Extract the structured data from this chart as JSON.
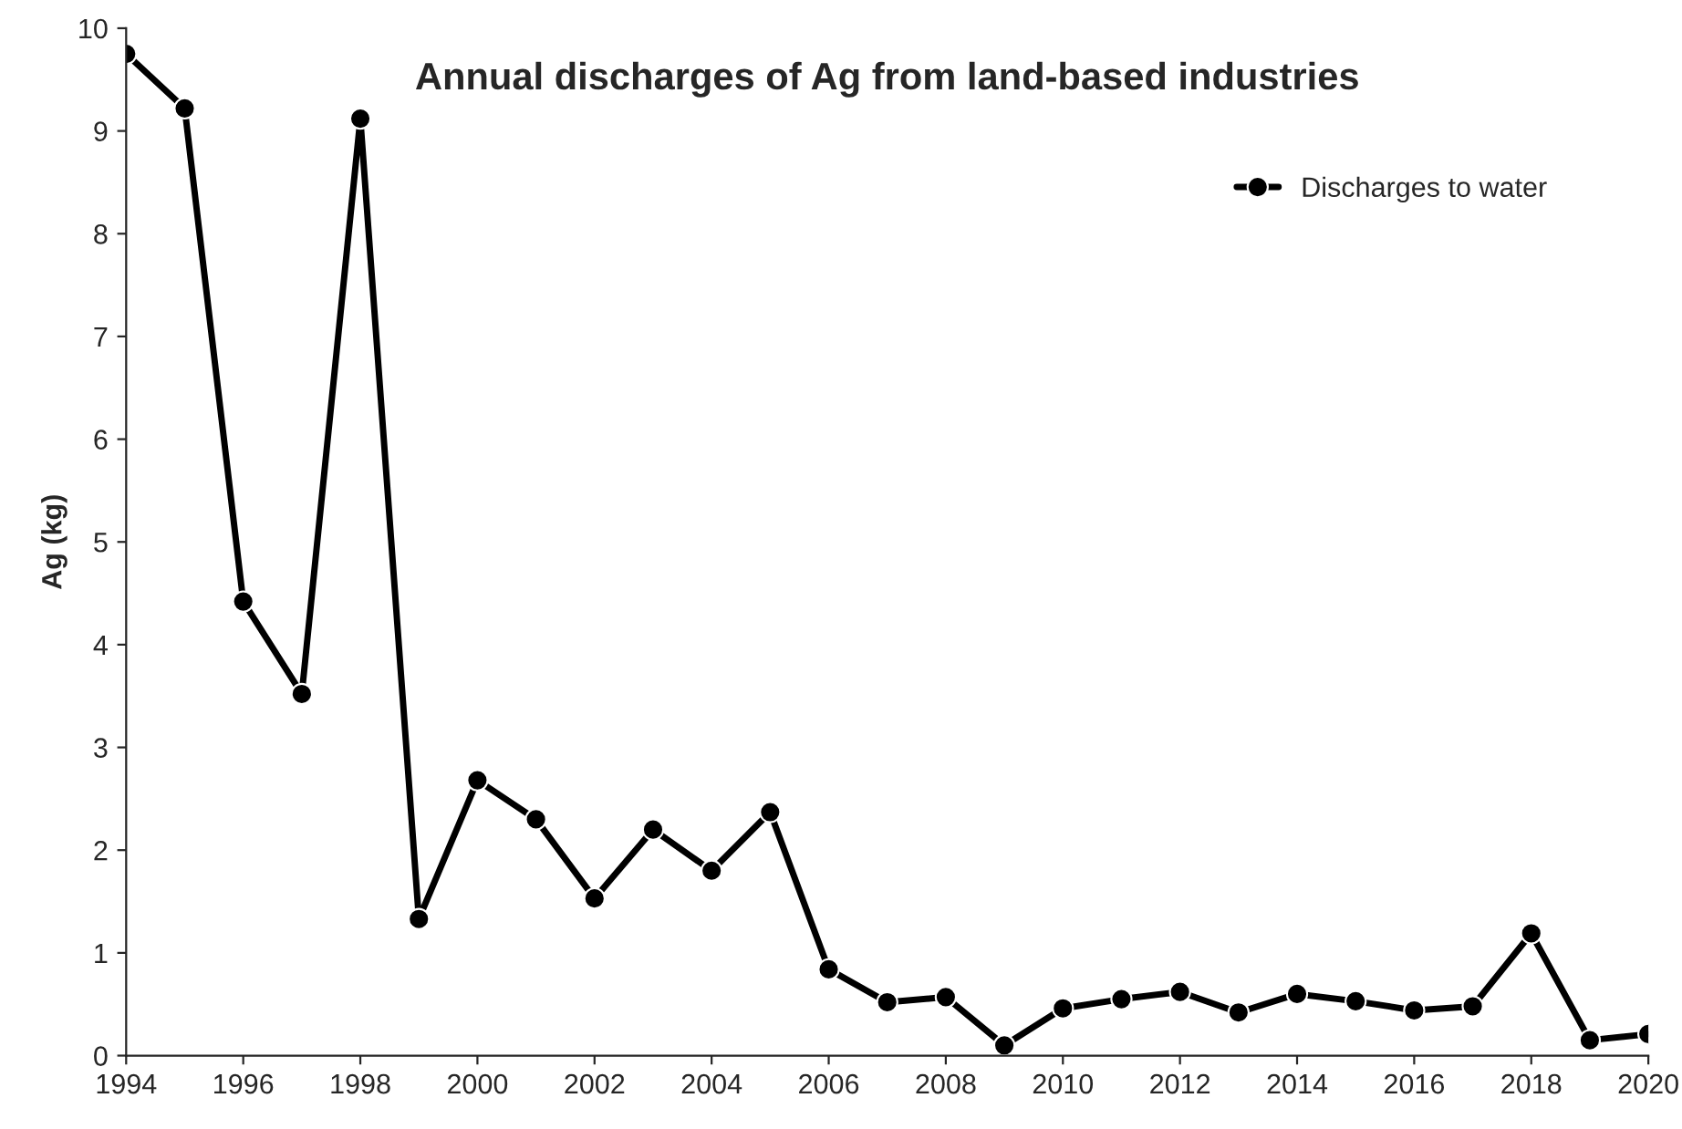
{
  "chart_data": {
    "type": "line",
    "title": "Annual discharges of Ag from land-based industries",
    "ylabel": "Ag (kg)",
    "x": [
      1994,
      1995,
      1996,
      1997,
      1998,
      1999,
      2000,
      2001,
      2002,
      2003,
      2004,
      2005,
      2006,
      2007,
      2008,
      2009,
      2010,
      2011,
      2012,
      2013,
      2014,
      2015,
      2016,
      2017,
      2018,
      2019,
      2020
    ],
    "series": [
      {
        "name": "Discharges to water",
        "color": "#000000",
        "values": [
          9.75,
          9.22,
          4.42,
          3.52,
          9.12,
          1.33,
          2.68,
          2.3,
          1.53,
          2.2,
          1.8,
          2.37,
          0.84,
          0.52,
          0.57,
          0.1,
          0.46,
          0.55,
          0.62,
          0.42,
          0.6,
          0.53,
          0.44,
          0.48,
          1.19,
          0.15,
          0.21
        ]
      }
    ],
    "xlim": [
      1994,
      2020
    ],
    "xticks": [
      1994,
      1996,
      1998,
      2000,
      2002,
      2004,
      2006,
      2008,
      2010,
      2012,
      2014,
      2016,
      2018,
      2020
    ],
    "ylim": [
      0,
      10
    ],
    "yticks": [
      0,
      1,
      2,
      3,
      4,
      5,
      6,
      7,
      8,
      9,
      10
    ],
    "marker": "circle",
    "line_style": "solid",
    "grid": false,
    "legend": "top right"
  }
}
